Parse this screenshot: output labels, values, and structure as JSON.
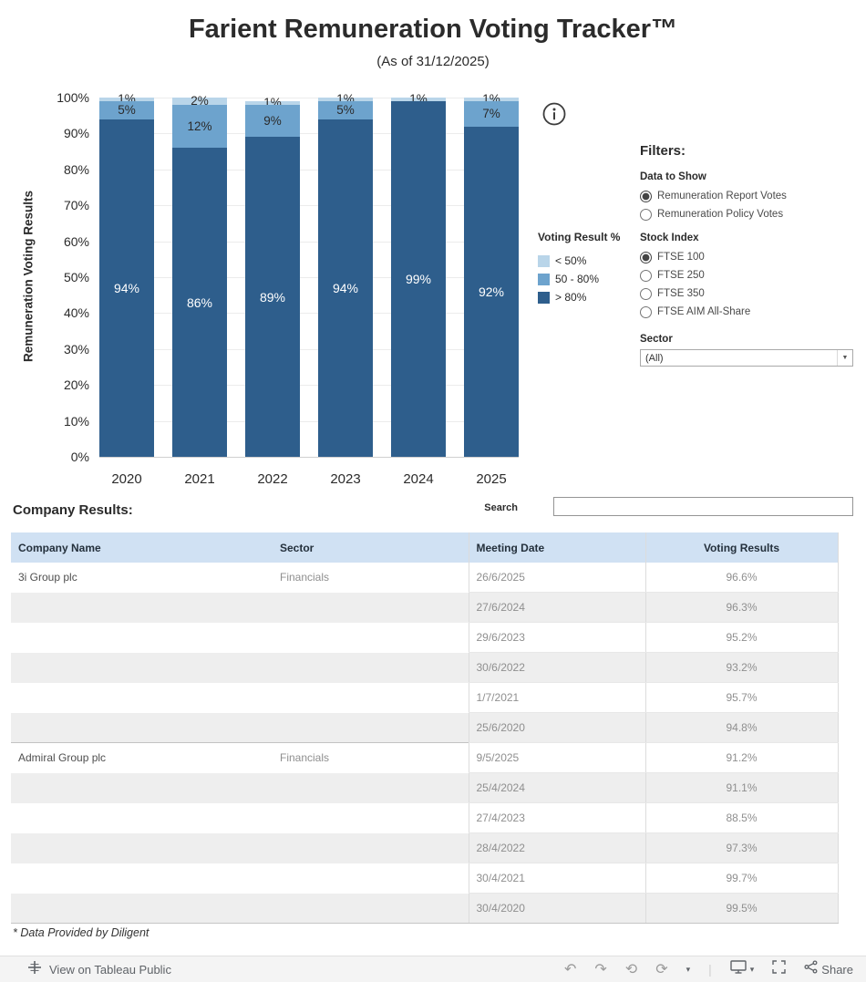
{
  "header": {
    "title": "Farient Remuneration Voting Tracker™",
    "subtitle": "(As of 31/12/2025)"
  },
  "chart_data": {
    "type": "bar",
    "stacked": true,
    "categories": [
      "2020",
      "2021",
      "2022",
      "2023",
      "2024",
      "2025"
    ],
    "series": [
      {
        "name": "< 50%",
        "color": "#b9d5e9",
        "values": [
          1,
          2,
          1,
          1,
          1,
          1
        ]
      },
      {
        "name": "50 - 80%",
        "color": "#6da3cd",
        "values": [
          5,
          12,
          9,
          5,
          0,
          7
        ]
      },
      {
        "name": "> 80%",
        "color": "#2e5e8c",
        "values": [
          94,
          86,
          89,
          94,
          99,
          92
        ]
      }
    ],
    "ylabel": "Remuneration Voting Results",
    "xlabel": "",
    "ylim": [
      0,
      100
    ],
    "ytick_step": 10,
    "ytick_labels": [
      "100%",
      "90%",
      "80%",
      "70%",
      "60%",
      "50%",
      "40%",
      "30%",
      "20%",
      "10%",
      "0%"
    ],
    "grid": true,
    "legend_title": "Voting Result %",
    "legend_position": "right"
  },
  "filters": {
    "heading": "Filters:",
    "groups": [
      {
        "label": "Data to Show",
        "name": "data-to-show",
        "options": [
          {
            "label": "Remuneration Report Votes",
            "selected": true
          },
          {
            "label": "Remuneration Policy Votes",
            "selected": false
          }
        ]
      },
      {
        "label": "Stock Index",
        "name": "stock-index",
        "options": [
          {
            "label": "FTSE 100",
            "selected": true
          },
          {
            "label": "FTSE 250",
            "selected": false
          },
          {
            "label": "FTSE 350",
            "selected": false
          },
          {
            "label": "FTSE AIM All-Share",
            "selected": false
          }
        ]
      }
    ],
    "sector": {
      "label": "Sector",
      "value": "(All)"
    }
  },
  "company_results": {
    "heading": "Company Results:",
    "search_label": "Search",
    "search_value": "",
    "table": {
      "headers": [
        "Company Name",
        "Sector",
        "Meeting Date",
        "Voting Results"
      ],
      "rows": [
        {
          "company": "3i Group plc",
          "sector": "Financials",
          "meeting_date": "26/6/2025",
          "voting_result": "96.6%",
          "group_start": true
        },
        {
          "company": "",
          "sector": "",
          "meeting_date": "27/6/2024",
          "voting_result": "96.3%",
          "group_start": false
        },
        {
          "company": "",
          "sector": "",
          "meeting_date": "29/6/2023",
          "voting_result": "95.2%",
          "group_start": false
        },
        {
          "company": "",
          "sector": "",
          "meeting_date": "30/6/2022",
          "voting_result": "93.2%",
          "group_start": false
        },
        {
          "company": "",
          "sector": "",
          "meeting_date": "1/7/2021",
          "voting_result": "95.7%",
          "group_start": false
        },
        {
          "company": "",
          "sector": "",
          "meeting_date": "25/6/2020",
          "voting_result": "94.8%",
          "group_start": false
        },
        {
          "company": "Admiral Group plc",
          "sector": "Financials",
          "meeting_date": "9/5/2025",
          "voting_result": "91.2%",
          "group_start": true
        },
        {
          "company": "",
          "sector": "",
          "meeting_date": "25/4/2024",
          "voting_result": "91.1%",
          "group_start": false
        },
        {
          "company": "",
          "sector": "",
          "meeting_date": "27/4/2023",
          "voting_result": "88.5%",
          "group_start": false
        },
        {
          "company": "",
          "sector": "",
          "meeting_date": "28/4/2022",
          "voting_result": "97.3%",
          "group_start": false
        },
        {
          "company": "",
          "sector": "",
          "meeting_date": "30/4/2021",
          "voting_result": "99.7%",
          "group_start": false
        },
        {
          "company": "",
          "sector": "",
          "meeting_date": "30/4/2020",
          "voting_result": "99.5%",
          "group_start": false
        }
      ]
    }
  },
  "footnote": "* Data Provided by Diligent",
  "toolbar": {
    "attribution": "View on Tableau Public",
    "share_label": "Share",
    "glyphs": {
      "undo": "↶",
      "redo": "↷",
      "reset": "⟲",
      "refresh": "⟳",
      "caret": "▾",
      "separator": "|"
    }
  },
  "colors": {
    "bar_gt80": "#2e5e8c",
    "bar_50_80": "#6da3cd",
    "bar_lt50": "#b9d5e9",
    "table_header_bg": "#d0e1f3",
    "row_stripe": "#eeeeee"
  }
}
